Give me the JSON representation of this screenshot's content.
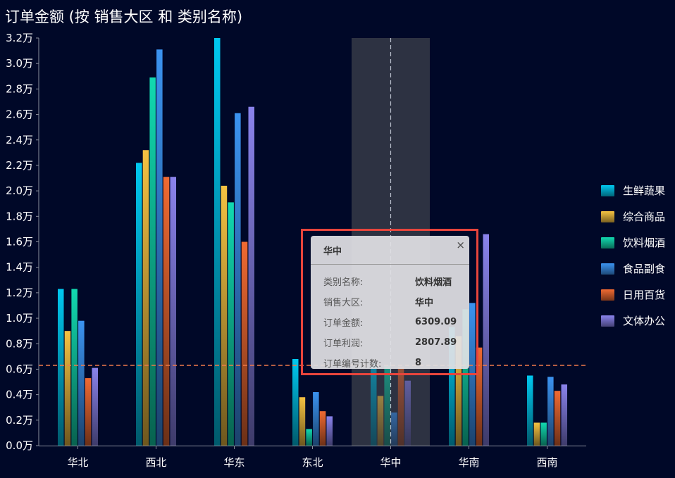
{
  "title": "订单金额 (按 销售大区 和 类别名称)",
  "chart_data": {
    "type": "bar",
    "title": "订单金额 (按 销售大区 和 类别名称)",
    "categories": [
      "华北",
      "西北",
      "华东",
      "东北",
      "华中",
      "华南",
      "西南"
    ],
    "y_tick_labels": [
      "0.0万",
      "0.2万",
      "0.4万",
      "0.6万",
      "0.8万",
      "1.0万",
      "1.2万",
      "1.4万",
      "1.6万",
      "1.8万",
      "2.0万",
      "2.2万",
      "2.4万",
      "2.6万",
      "2.8万",
      "3.0万",
      "3.2万"
    ],
    "ylim": [
      0,
      32000
    ],
    "reference_line": 6300,
    "highlight_category": "华中",
    "legend_position": "right",
    "grid": false,
    "series": [
      {
        "name": "生鲜蔬果",
        "color": "#00c8f0",
        "values": [
          12300,
          22200,
          32000,
          6800,
          6500,
          9300,
          5500
        ]
      },
      {
        "name": "综合商品",
        "color": "#f5c242",
        "values": [
          9000,
          23200,
          20400,
          3800,
          3900,
          8600,
          1800
        ]
      },
      {
        "name": "饮料烟酒",
        "color": "#12d9b0",
        "values": [
          12300,
          28900,
          19100,
          1300,
          6309.09,
          10700,
          1800
        ]
      },
      {
        "name": "食品副食",
        "color": "#3b93f0",
        "values": [
          9800,
          31100,
          26100,
          4200,
          2600,
          11200,
          5400
        ]
      },
      {
        "name": "日用百货",
        "color": "#f06a32",
        "values": [
          5300,
          21100,
          16000,
          2700,
          6200,
          7700,
          4300
        ]
      },
      {
        "name": "文体办公",
        "color": "#8a83ec",
        "values": [
          6100,
          21100,
          26600,
          2300,
          5100,
          16600,
          4800
        ]
      }
    ]
  },
  "tooltip": {
    "title": "华中",
    "close": "×",
    "rows": [
      {
        "key": "类别名称:",
        "value": "饮料烟酒"
      },
      {
        "key": "销售大区:",
        "value": "华中"
      },
      {
        "key": "订单金额:",
        "value": "6309.09"
      },
      {
        "key": "订单利润:",
        "value": "2807.89"
      },
      {
        "key": "订单编号计数:",
        "value": "8"
      }
    ]
  }
}
